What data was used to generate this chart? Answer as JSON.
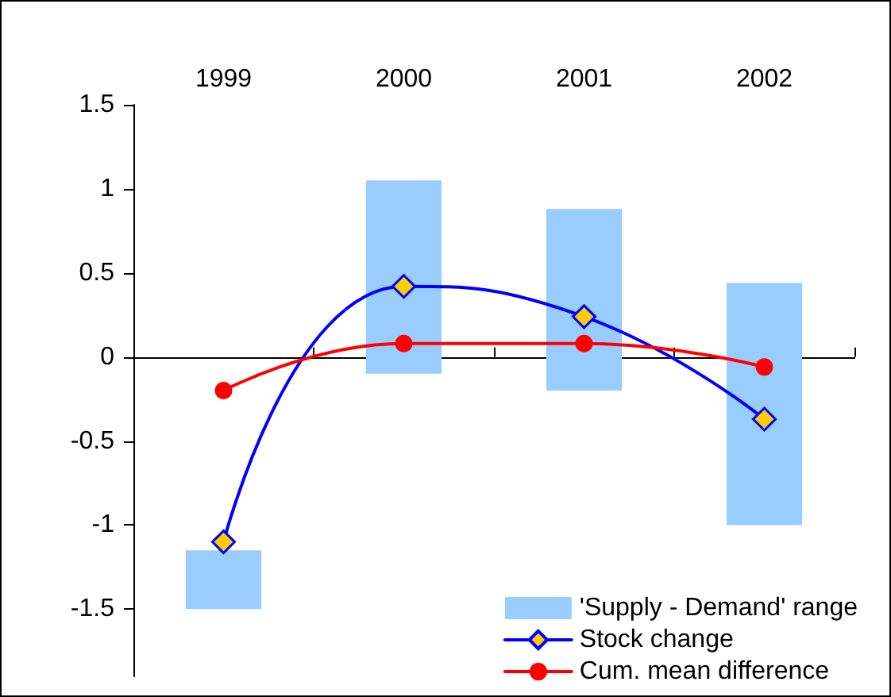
{
  "chart_data": {
    "type": "bar",
    "categories": [
      "1999",
      "2000",
      "2001",
      "2002"
    ],
    "ylim": [
      -1.9,
      1.5
    ],
    "yticks": [
      -1.5,
      -1,
      -0.5,
      0,
      0.5,
      1,
      1.5
    ],
    "legend": "bottom right",
    "series": [
      {
        "name": "'Supply - Demand' range",
        "color": "#99ccff",
        "base": [
          -1.5,
          -0.1,
          -0.2,
          -1.0
        ],
        "values": [
          0.35,
          1.15,
          1.08,
          1.44
        ]
      },
      {
        "type": "line",
        "name": "Stock change",
        "color": "#0000ff",
        "marker": "diamond",
        "values": [
          -1.1,
          0.42,
          0.24,
          -0.37
        ]
      },
      {
        "type": "line",
        "name": "Cum. mean difference",
        "color": "#ff0000",
        "marker": "circle",
        "values": [
          -0.2,
          0.08,
          0.08,
          -0.06
        ]
      }
    ]
  }
}
